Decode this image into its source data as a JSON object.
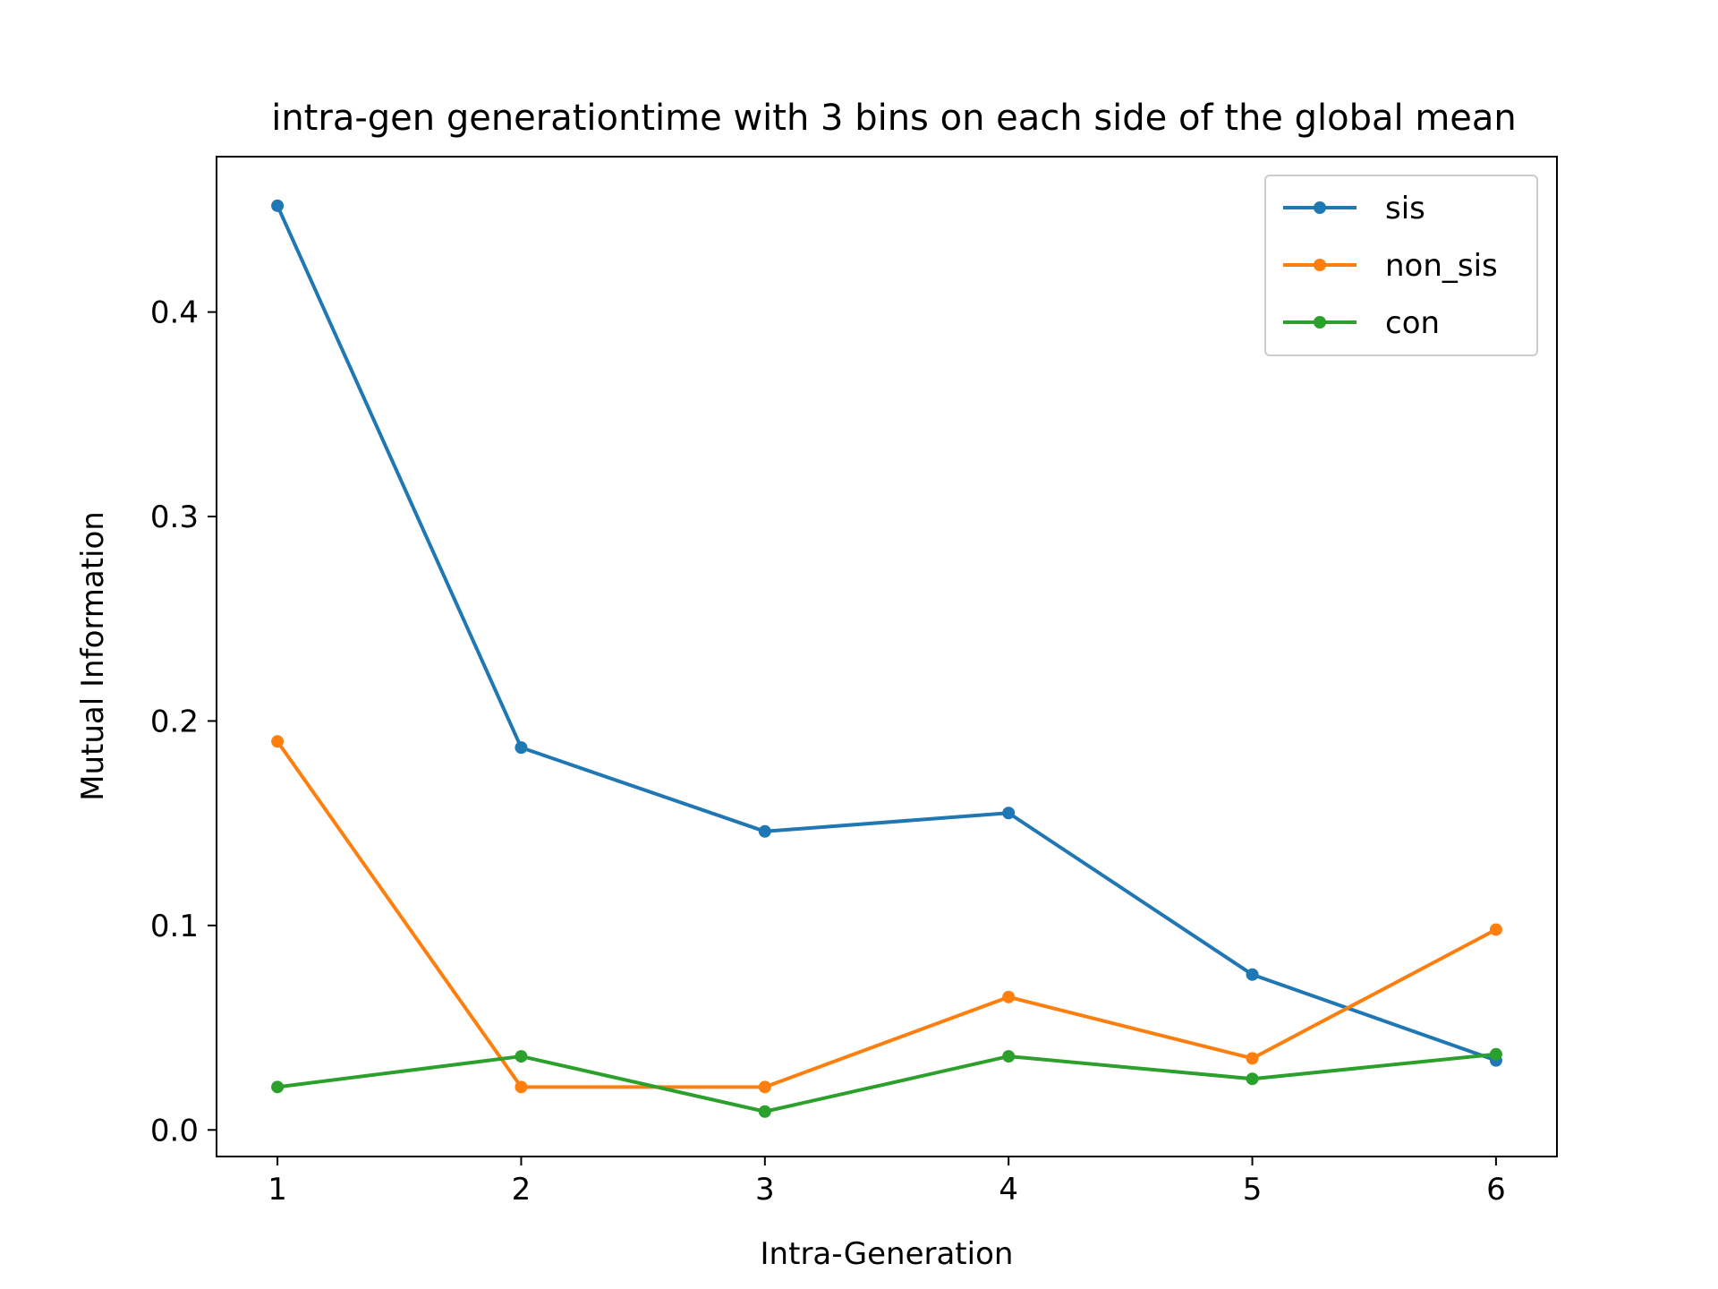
{
  "chart_data": {
    "type": "line",
    "title": "intra-gen generationtime with 3 bins on each side of the global mean",
    "xlabel": "Intra-Generation",
    "ylabel": "Mutual Information",
    "x": [
      1,
      2,
      3,
      4,
      5,
      6
    ],
    "xticks": [
      "1",
      "2",
      "3",
      "4",
      "5",
      "6"
    ],
    "yticks": [
      "0.0",
      "0.1",
      "0.2",
      "0.3",
      "0.4"
    ],
    "xlim": [
      0.75,
      6.25
    ],
    "ylim": [
      -0.013,
      0.476
    ],
    "grid": false,
    "legend_position": "top-right",
    "series": [
      {
        "name": "sis",
        "color": "#1f77b4",
        "values": [
          0.452,
          0.187,
          0.146,
          0.155,
          0.076,
          0.034
        ]
      },
      {
        "name": "non_sis",
        "color": "#ff7f0e",
        "values": [
          0.19,
          0.021,
          0.021,
          0.065,
          0.035,
          0.098
        ]
      },
      {
        "name": "con",
        "color": "#2ca02c",
        "values": [
          0.021,
          0.036,
          0.009,
          0.036,
          0.025,
          0.037
        ]
      }
    ]
  }
}
